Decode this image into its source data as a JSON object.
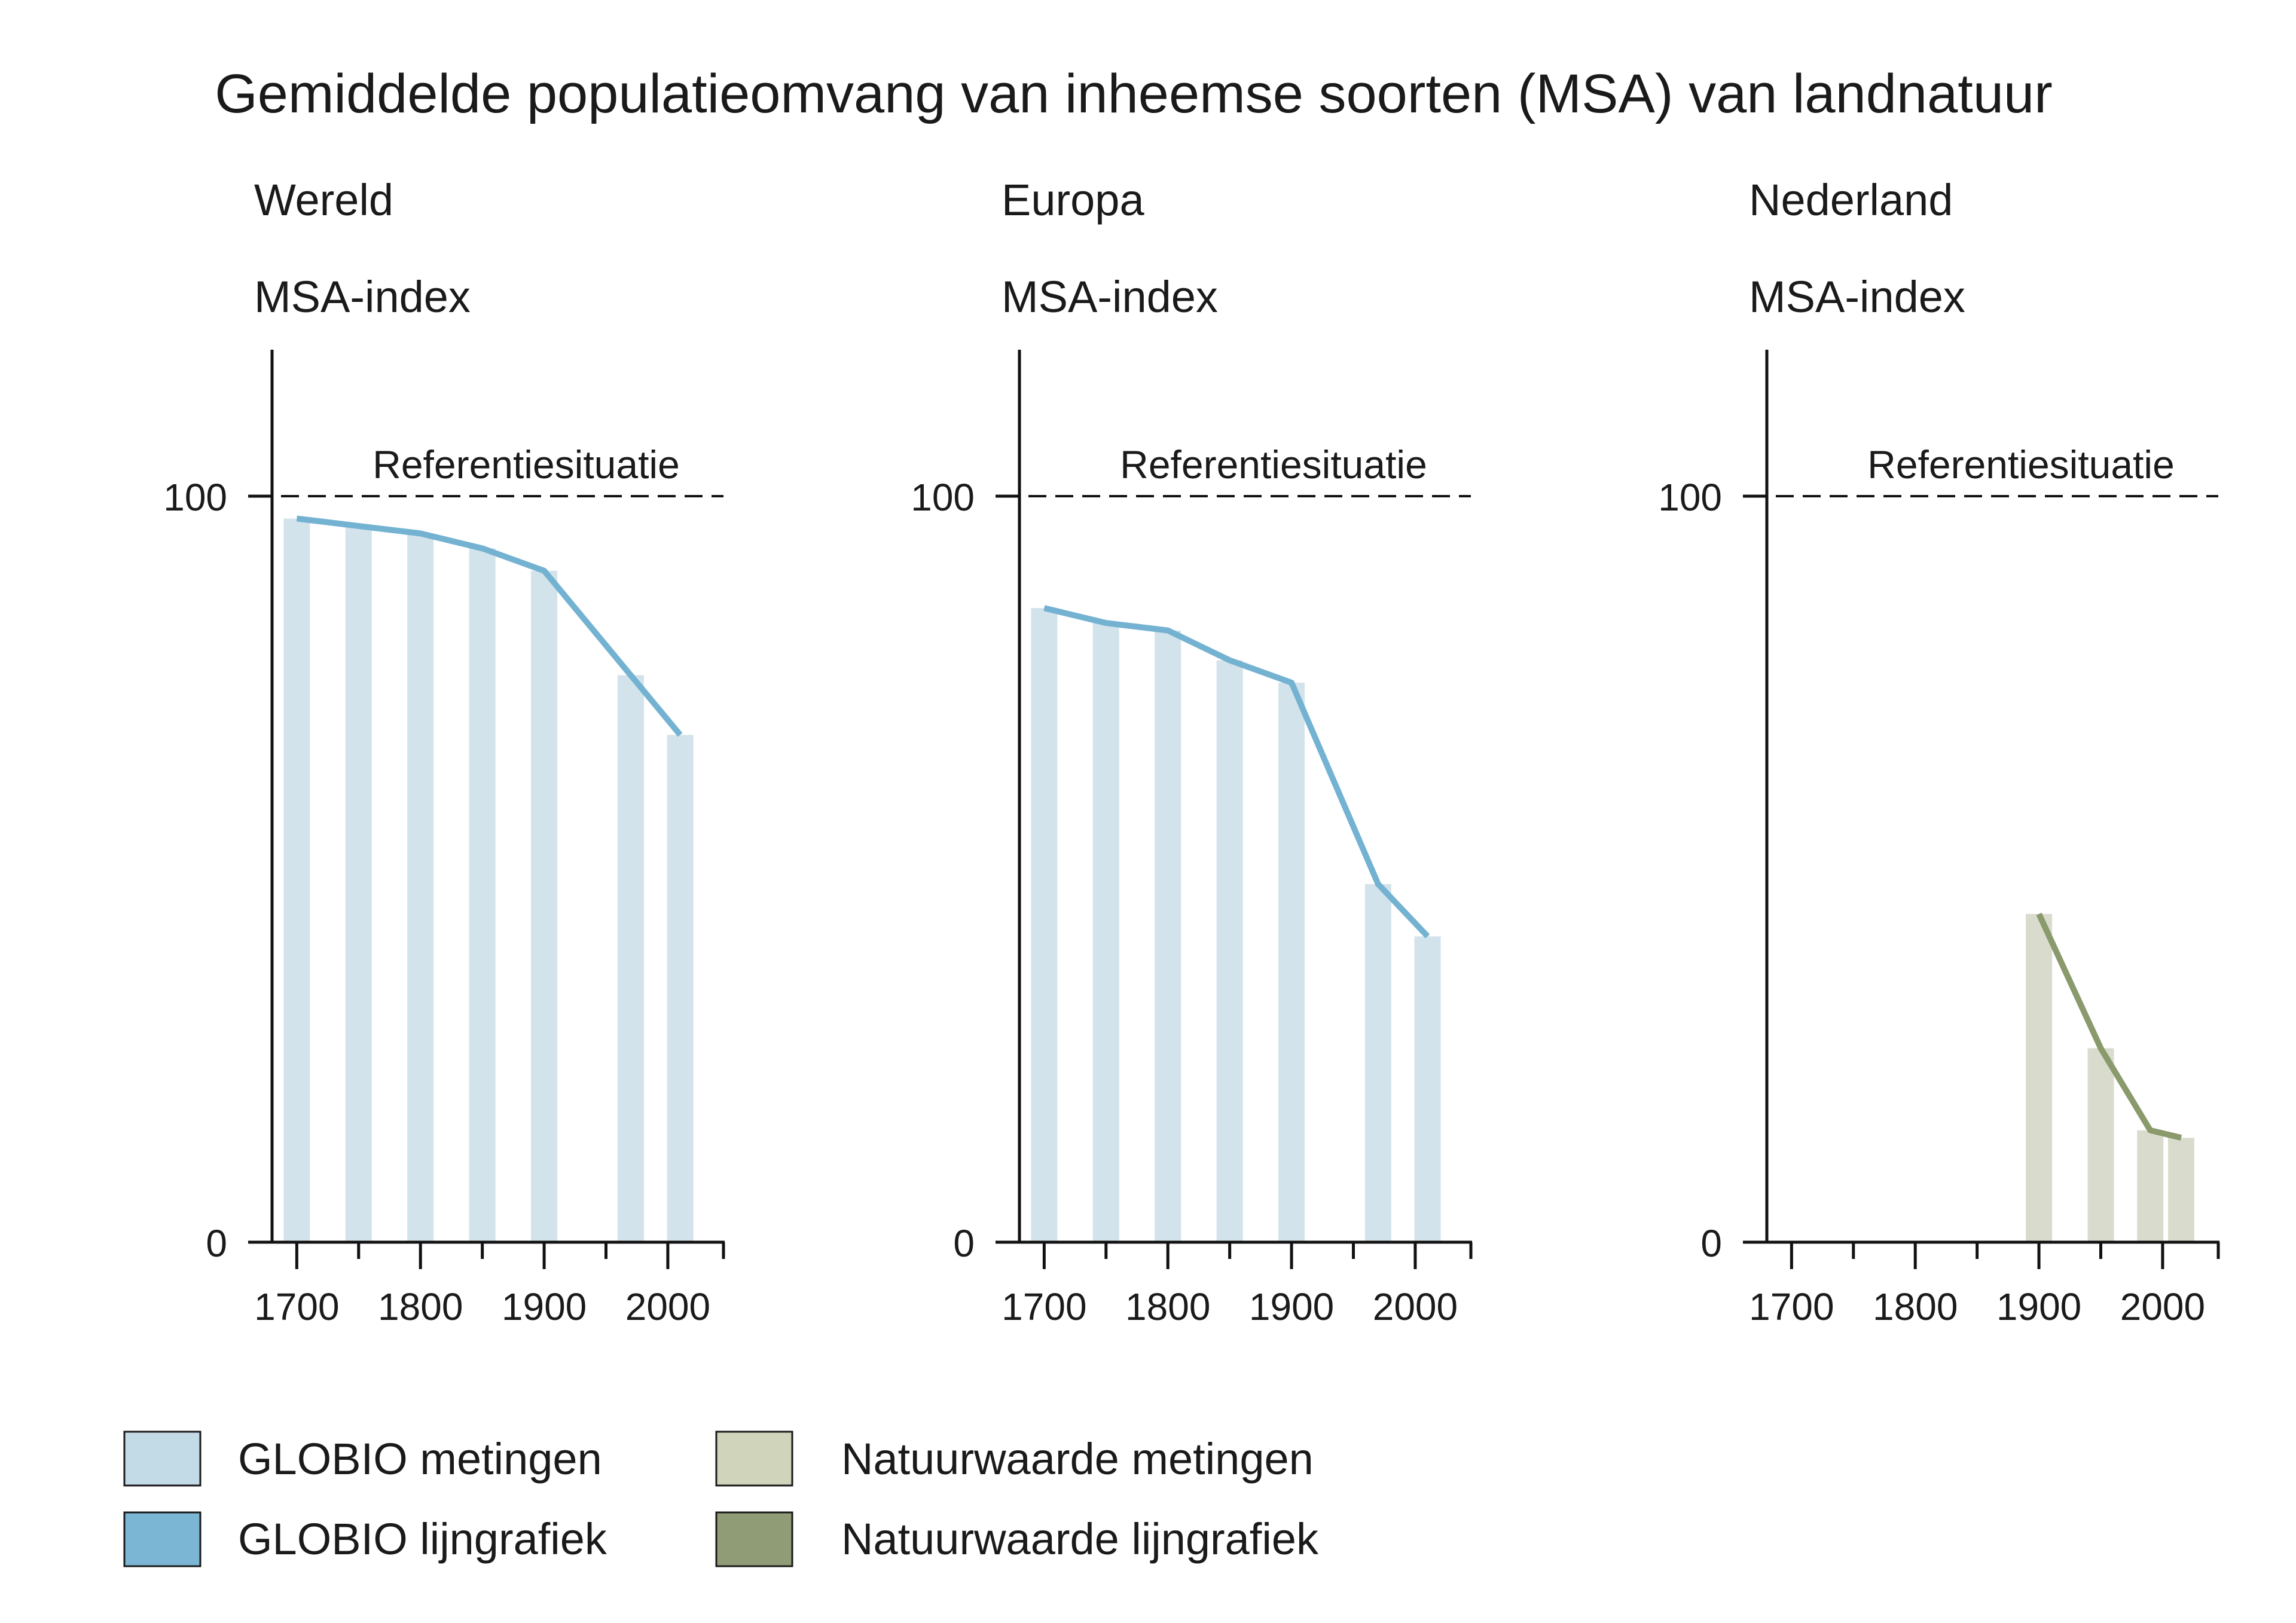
{
  "title": "Gemiddelde populatieomvang van inheemse soorten (MSA) van landnatuur",
  "colors": {
    "globio_bar": "#d3e3eb",
    "globio_line": "#74b2d2",
    "natuur_bar": "#d9dccd",
    "natuur_line": "#8a9a6c",
    "legend_globio_metingen": "#c3dbe6",
    "legend_globio_lijn": "#7bb6d4",
    "legend_natuur_metingen": "#cfd4bb",
    "legend_natuur_lijn": "#8f9c75",
    "axis": "#111111"
  },
  "legend": {
    "globio_metingen": "GLOBIO metingen",
    "globio_lijn": "GLOBIO lijngrafiek",
    "natuur_metingen": "Natuurwaarde metingen",
    "natuur_lijn": "Natuurwaarde lijngrafiek"
  },
  "chart_data": [
    {
      "type": "bar",
      "title": "Wereld",
      "ylabel": "MSA-index",
      "ylim": [
        0,
        120
      ],
      "yticks": [
        "0",
        "100"
      ],
      "xlim": [
        1680,
        2045
      ],
      "xticks": [
        "1700",
        "1800",
        "1900",
        "2000"
      ],
      "reference": {
        "label": "Referentiesituatie",
        "value": 100
      },
      "bar_series": "GLOBIO metingen",
      "line_series": "GLOBIO lijngrafiek",
      "scheme": "globio",
      "x": [
        1700,
        1750,
        1800,
        1850,
        1900,
        1970,
        2010
      ],
      "values": [
        97,
        96,
        95,
        93,
        90,
        76,
        68
      ]
    },
    {
      "type": "bar",
      "title": "Europa",
      "ylabel": "MSA-index",
      "ylim": [
        0,
        120
      ],
      "yticks": [
        "0",
        "100"
      ],
      "xlim": [
        1680,
        2045
      ],
      "xticks": [
        "1700",
        "1800",
        "1900",
        "2000"
      ],
      "reference": {
        "label": "Referentiesituatie",
        "value": 100
      },
      "bar_series": "GLOBIO metingen",
      "line_series": "GLOBIO lijngrafiek",
      "scheme": "globio",
      "x": [
        1700,
        1750,
        1800,
        1850,
        1900,
        1970,
        2010
      ],
      "values": [
        85,
        83,
        82,
        78,
        75,
        48,
        41
      ]
    },
    {
      "type": "bar",
      "title": "Nederland",
      "ylabel": "MSA-index",
      "ylim": [
        0,
        120
      ],
      "yticks": [
        "0",
        "100"
      ],
      "xlim": [
        1680,
        2045
      ],
      "xticks": [
        "1700",
        "1800",
        "1900",
        "2000"
      ],
      "reference": {
        "label": "Referentiesituatie",
        "value": 100
      },
      "bar_series": "Natuurwaarde metingen",
      "line_series": "Natuurwaarde lijngrafiek",
      "scheme": "natuur",
      "x": [
        1900,
        1950,
        1990,
        2015
      ],
      "values": [
        44,
        26,
        15,
        14
      ]
    }
  ]
}
